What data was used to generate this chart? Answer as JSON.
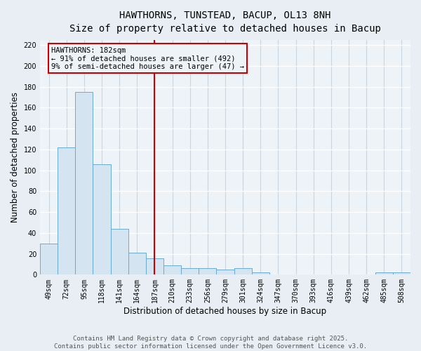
{
  "title": "HAWTHORNS, TUNSTEAD, BACUP, OL13 8NH",
  "subtitle": "Size of property relative to detached houses in Bacup",
  "xlabel": "Distribution of detached houses by size in Bacup",
  "ylabel": "Number of detached properties",
  "categories": [
    "49sqm",
    "72sqm",
    "95sqm",
    "118sqm",
    "141sqm",
    "164sqm",
    "187sqm",
    "210sqm",
    "233sqm",
    "256sqm",
    "279sqm",
    "301sqm",
    "324sqm",
    "347sqm",
    "370sqm",
    "393sqm",
    "416sqm",
    "439sqm",
    "462sqm",
    "485sqm",
    "508sqm"
  ],
  "values": [
    30,
    122,
    175,
    106,
    44,
    21,
    16,
    9,
    6,
    6,
    5,
    6,
    2,
    0,
    0,
    0,
    0,
    0,
    0,
    2,
    2
  ],
  "bar_color": "#d4e4f0",
  "bar_edge_color": "#6aaad4",
  "vline_x_index": 6,
  "vline_color": "#cc0000",
  "annotation_line1": "HAWTHORNS: 182sqm",
  "annotation_line2": "← 91% of detached houses are smaller (492)",
  "annotation_line3": "9% of semi-detached houses are larger (47) →",
  "annotation_box_color": "#cc0000",
  "ylim": [
    0,
    225
  ],
  "yticks": [
    0,
    20,
    40,
    60,
    80,
    100,
    120,
    140,
    160,
    180,
    200,
    220
  ],
  "background_color": "#e8eef4",
  "grid_color": "#d0d8e0",
  "footer_text": "Contains HM Land Registry data © Crown copyright and database right 2025.\nContains public sector information licensed under the Open Government Licence v3.0.",
  "title_fontsize": 10,
  "subtitle_fontsize": 9,
  "axis_label_fontsize": 8.5,
  "tick_fontsize": 7,
  "footer_fontsize": 6.5,
  "annotation_fontsize": 7.5
}
